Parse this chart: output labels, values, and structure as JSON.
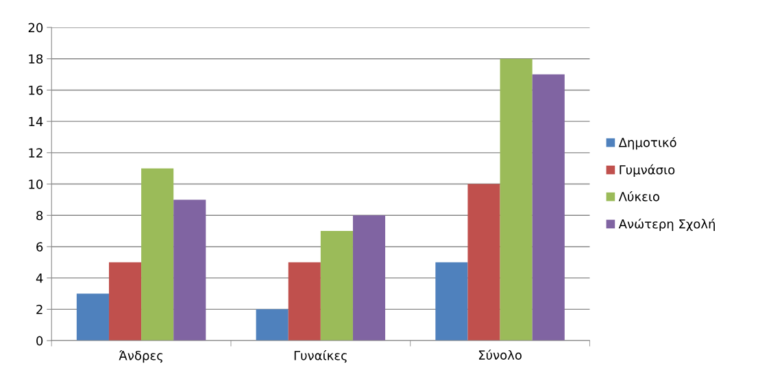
{
  "chart_data": {
    "type": "bar",
    "categories": [
      "Άνδρες",
      "Γυναίκες",
      "Σύνολο"
    ],
    "series": [
      {
        "name": "Δημοτικό",
        "color": "#4f81bd",
        "values": [
          3,
          2,
          5
        ]
      },
      {
        "name": "Γυμνάσιο",
        "color": "#c0504d",
        "values": [
          5,
          5,
          10
        ]
      },
      {
        "name": "Λύκειο",
        "color": "#9bbb59",
        "values": [
          11,
          7,
          18
        ]
      },
      {
        "name": "Ανώτερη Σχολή",
        "color": "#8064a2",
        "values": [
          9,
          8,
          17
        ]
      }
    ],
    "ylim": [
      0,
      20
    ],
    "yticks": [
      0,
      2,
      4,
      6,
      8,
      10,
      12,
      14,
      16,
      18,
      20
    ],
    "grid": "y",
    "legend": "right"
  }
}
